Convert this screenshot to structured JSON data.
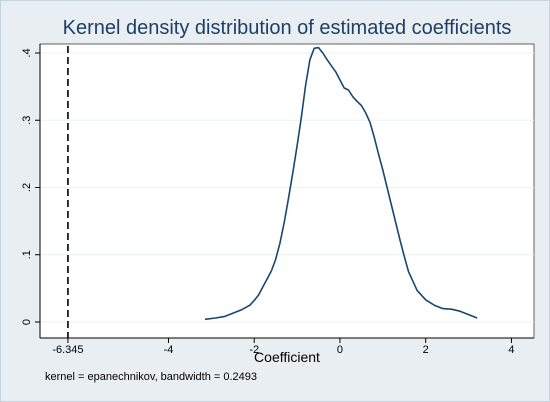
{
  "chart_data": {
    "type": "line",
    "title": "Kernel density distribution of estimated coefficients",
    "xlabel": "Coefficient",
    "ylabel": "",
    "note": "kernel = epanechnikov, bandwidth = 0.2493",
    "xlim": [
      -6.6,
      4.2
    ],
    "ylim": [
      0,
      0.41
    ],
    "x_ticks": [
      -6.345,
      -4,
      -2,
      0,
      2,
      4
    ],
    "x_tick_labels": [
      "-6.345",
      "-4",
      "-2",
      "0",
      "2",
      "4"
    ],
    "y_ticks": [
      0,
      0.1,
      0.2,
      0.3,
      0.4
    ],
    "y_tick_labels": [
      "0",
      ".1",
      ".2",
      ".3",
      ".4"
    ],
    "grid": true,
    "reference_line": {
      "x": -6.345,
      "style": "dashed"
    },
    "colors": {
      "line": "#1a476f",
      "plot_background": "#ffffff",
      "outer_background": "#e9eef3",
      "grid": "#eaf2f3",
      "title": "#1f3f66"
    },
    "series": [
      {
        "x": [
          -3.15,
          -2.9,
          -2.7,
          -2.5,
          -2.3,
          -2.1,
          -2.0,
          -1.9,
          -1.8,
          -1.7,
          -1.6,
          -1.5,
          -1.4,
          -1.3,
          -1.2,
          -1.1,
          -1.0,
          -0.9,
          -0.8,
          -0.7,
          -0.6,
          -0.5,
          -0.4,
          -0.3,
          -0.2,
          -0.1,
          0.0,
          0.1,
          0.2,
          0.3,
          0.4,
          0.5,
          0.6,
          0.7,
          0.8,
          0.9,
          1.0,
          1.1,
          1.2,
          1.3,
          1.4,
          1.5,
          1.6,
          1.8,
          2.0,
          2.2,
          2.4,
          2.6,
          2.8,
          3.0,
          3.2
        ],
        "values": [
          0.004,
          0.006,
          0.008,
          0.013,
          0.018,
          0.025,
          0.032,
          0.04,
          0.052,
          0.064,
          0.076,
          0.093,
          0.117,
          0.148,
          0.184,
          0.222,
          0.262,
          0.305,
          0.352,
          0.39,
          0.407,
          0.408,
          0.4,
          0.39,
          0.381,
          0.372,
          0.36,
          0.348,
          0.345,
          0.335,
          0.328,
          0.322,
          0.311,
          0.297,
          0.275,
          0.25,
          0.226,
          0.2,
          0.174,
          0.148,
          0.122,
          0.098,
          0.075,
          0.047,
          0.033,
          0.025,
          0.02,
          0.019,
          0.016,
          0.011,
          0.006
        ]
      }
    ]
  }
}
